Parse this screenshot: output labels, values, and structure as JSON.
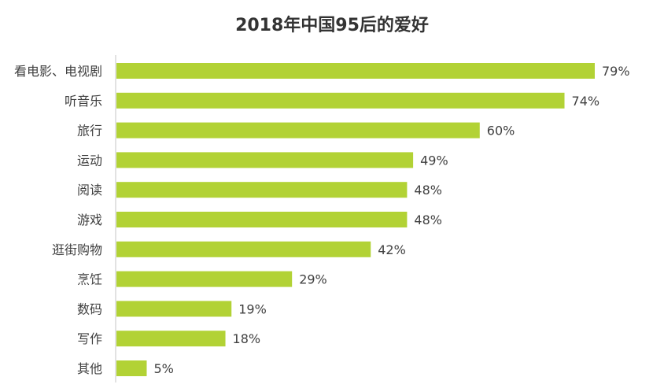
{
  "chart_data": {
    "type": "bar",
    "orientation": "horizontal",
    "title": "2018年中国95后的爱好",
    "categories": [
      "看电影、电视剧",
      "听音乐",
      "旅行",
      "运动",
      "阅读",
      "游戏",
      "逛街购物",
      "烹饪",
      "数码",
      "写作",
      "其他"
    ],
    "values": [
      79,
      74,
      60,
      49,
      48,
      48,
      42,
      29,
      19,
      18,
      5
    ],
    "value_labels": [
      "79%",
      "74%",
      "60%",
      "49%",
      "48%",
      "48%",
      "42%",
      "29%",
      "19%",
      "18%",
      "5%"
    ],
    "unit": "%",
    "xlim": [
      0,
      100
    ],
    "grid": false,
    "legend": "none",
    "bar_color": "#b2d235",
    "text_color": "#404040"
  }
}
